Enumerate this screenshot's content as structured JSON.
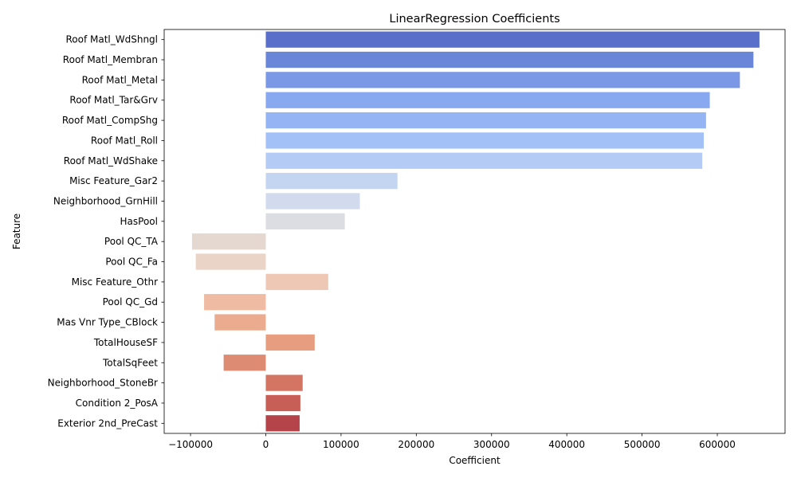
{
  "chart_data": {
    "type": "bar",
    "orientation": "horizontal",
    "title": "LinearRegression Coefficients",
    "xlabel": "Coefficient",
    "ylabel": "Feature",
    "xlim": [
      -135000,
      690000
    ],
    "xticks": [
      -100000,
      0,
      100000,
      200000,
      300000,
      400000,
      500000,
      600000
    ],
    "xtick_labels": [
      "−100000",
      "0",
      "100000",
      "200000",
      "300000",
      "400000",
      "500000",
      "600000"
    ],
    "grid": false,
    "legend": "none",
    "palette": "coolwarm",
    "categories": [
      "Roof Matl_WdShngl",
      "Roof Matl_Membran",
      "Roof Matl_Metal",
      "Roof Matl_Tar&Grv",
      "Roof Matl_CompShg",
      "Roof Matl_Roll",
      "Roof Matl_WdShake",
      "Misc Feature_Gar2",
      "Neighborhood_GrnHill",
      "HasPool",
      "Pool QC_TA",
      "Pool QC_Fa",
      "Misc Feature_Othr",
      "Pool QC_Gd",
      "Mas Vnr Type_CBlock",
      "TotalHouseSF",
      "TotalSqFeet",
      "Neighborhood_StoneBr",
      "Condition 2_PosA",
      "Exterior 2nd_PreCast"
    ],
    "values": [
      656000,
      648000,
      630000,
      590000,
      585000,
      582000,
      580000,
      175000,
      125000,
      105000,
      -98000,
      -93000,
      83000,
      -82000,
      -68000,
      65000,
      -56000,
      49000,
      46000,
      45000
    ],
    "colors": [
      "#5a6fc9",
      "#6986d9",
      "#7a98e6",
      "#88a9f0",
      "#94b4f4",
      "#a3c0f7",
      "#b4ccf5",
      "#c4d5f1",
      "#d2dbed",
      "#dcdde2",
      "#e4d8d0",
      "#ead3c7",
      "#efc8b5",
      "#efbba3",
      "#ebab8f",
      "#e69d80",
      "#de8b73",
      "#d47563",
      "#c85f57",
      "#b5434a"
    ]
  }
}
